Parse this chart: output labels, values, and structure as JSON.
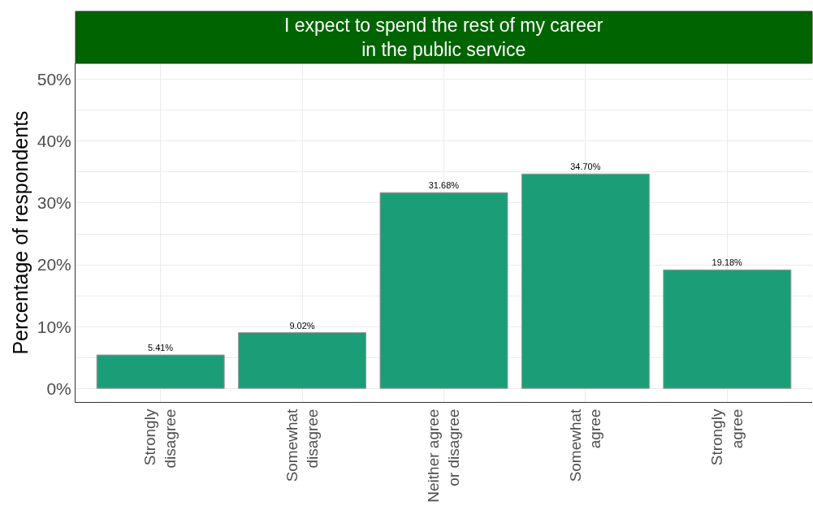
{
  "chart_data": {
    "type": "bar",
    "title": "I expect to spend the rest of my career\nin the public service",
    "ylabel": "Percentage of respondents",
    "categories": [
      "Strongly\ndisagree",
      "Somewhat\ndisagree",
      "Neither agree\nor disagree",
      "Somewhat\nagree",
      "Strongly\nagree"
    ],
    "values": [
      5.41,
      9.02,
      31.68,
      34.7,
      19.18
    ],
    "value_labels": [
      "5.41%",
      "9.02%",
      "31.68%",
      "34.70%",
      "19.18%"
    ],
    "color": "#1b9e77",
    "ylim": [
      -2.2,
      52.6
    ],
    "yticks": [
      {
        "value": 0,
        "label": "0%"
      },
      {
        "value": 5,
        "label": null
      },
      {
        "value": 10,
        "label": "10%"
      },
      {
        "value": 15,
        "label": null
      },
      {
        "value": 20,
        "label": "20%"
      },
      {
        "value": 25,
        "label": null
      },
      {
        "value": 30,
        "label": "30%"
      },
      {
        "value": 35,
        "label": null
      },
      {
        "value": 40,
        "label": "40%"
      },
      {
        "value": 45,
        "label": null
      },
      {
        "value": 50,
        "label": "50%"
      }
    ],
    "grid": true,
    "legend": false
  }
}
